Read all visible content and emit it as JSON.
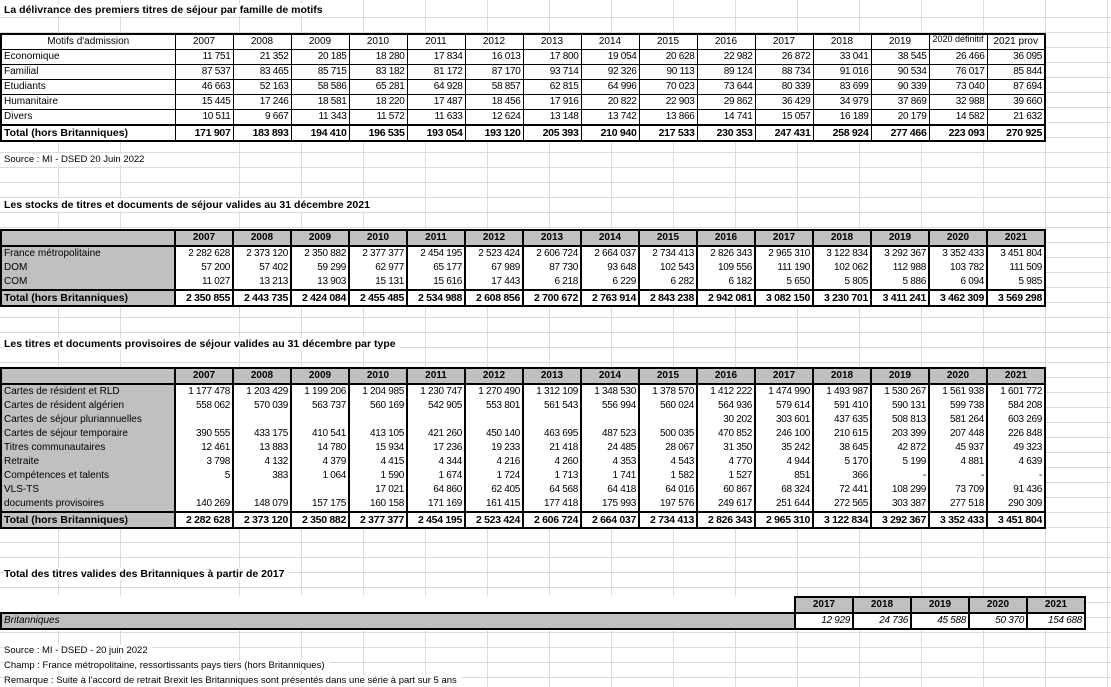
{
  "table1": {
    "title": "La délivrance des premiers titres de séjour par famille de motifs",
    "corner": "Motifs d'admission",
    "years": [
      "2007",
      "2008",
      "2009",
      "2010",
      "2011",
      "2012",
      "2013",
      "2014",
      "2015",
      "2016",
      "2017",
      "2018",
      "2019",
      "2020 définitif",
      "2021 prov"
    ],
    "rows": [
      {
        "label": "Economique",
        "values": [
          "11 751",
          "21 352",
          "20 185",
          "18 280",
          "17 834",
          "16 013",
          "17 800",
          "19 054",
          "20 628",
          "22 982",
          "26 872",
          "33 041",
          "38 545",
          "26 466",
          "36 095"
        ]
      },
      {
        "label": "Familial",
        "values": [
          "87 537",
          "83 465",
          "85 715",
          "83 182",
          "81 172",
          "87 170",
          "93 714",
          "92 326",
          "90 113",
          "89 124",
          "88 734",
          "91 016",
          "90 534",
          "76 017",
          "85 844"
        ]
      },
      {
        "label": "Etudiants",
        "values": [
          "46 663",
          "52 163",
          "58 586",
          "65 281",
          "64 928",
          "58 857",
          "62 815",
          "64 996",
          "70 023",
          "73 644",
          "80 339",
          "83 699",
          "90 339",
          "73 040",
          "87 694"
        ]
      },
      {
        "label": "Humanitaire",
        "values": [
          "15 445",
          "17 246",
          "18 581",
          "18 220",
          "17 487",
          "18 456",
          "17 916",
          "20 822",
          "22 903",
          "29 862",
          "36 429",
          "34 979",
          "37 869",
          "32 988",
          "39 660"
        ]
      },
      {
        "label": "Divers",
        "values": [
          "10 511",
          "9 667",
          "11 343",
          "11 572",
          "11 633",
          "12 624",
          "13 148",
          "13 742",
          "13 866",
          "14 741",
          "15 057",
          "16 189",
          "20 179",
          "14 582",
          "21 632"
        ]
      }
    ],
    "total": {
      "label": "Total (hors Britanniques)",
      "values": [
        "171 907",
        "183 893",
        "194 410",
        "196 535",
        "193 054",
        "193 120",
        "205 393",
        "210 940",
        "217 533",
        "230 353",
        "247 431",
        "258 924",
        "277 466",
        "223 093",
        "270 925"
      ]
    },
    "source": "Source : MI - DSED 20 Juin 2022"
  },
  "table2": {
    "title": "Les stocks de titres et documents de séjour valides au 31 décembre 2021",
    "corner": "",
    "years": [
      "2007",
      "2008",
      "2009",
      "2010",
      "2011",
      "2012",
      "2013",
      "2014",
      "2015",
      "2016",
      "2017",
      "2018",
      "2019",
      "2020",
      "2021"
    ],
    "rows": [
      {
        "label": "France métropolitaine",
        "values": [
          "2 282 628",
          "2 373 120",
          "2 350 882",
          "2 377 377",
          "2 454 195",
          "2 523 424",
          "2 606 724",
          "2 664 037",
          "2 734 413",
          "2 826 343",
          "2 965 310",
          "3 122 834",
          "3 292 367",
          "3 352 433",
          "3 451 804"
        ]
      },
      {
        "label": "DOM",
        "values": [
          "57 200",
          "57 402",
          "59 299",
          "62 977",
          "65 177",
          "67 989",
          "87 730",
          "93 648",
          "102 543",
          "109 556",
          "111 190",
          "102 062",
          "112 988",
          "103 782",
          "111 509"
        ]
      },
      {
        "label": "COM",
        "values": [
          "11 027",
          "13 213",
          "13 903",
          "15 131",
          "15 616",
          "17 443",
          "6 218",
          "6 229",
          "6 282",
          "6 182",
          "5 650",
          "5 805",
          "5 886",
          "6 094",
          "5 985"
        ]
      }
    ],
    "total": {
      "label": "Total (hors Britanniques)",
      "values": [
        "2 350 855",
        "2 443 735",
        "2 424 084",
        "2 455 485",
        "2 534 988",
        "2 608 856",
        "2 700 672",
        "2 763 914",
        "2 843 238",
        "2 942 081",
        "3 082 150",
        "3 230 701",
        "3 411 241",
        "3 462 309",
        "3 569 298"
      ]
    }
  },
  "table3": {
    "title": "Les titres et documents provisoires de séjour valides au 31 décembre par type",
    "corner": "",
    "years": [
      "2007",
      "2008",
      "2009",
      "2010",
      "2011",
      "2012",
      "2013",
      "2014",
      "2015",
      "2016",
      "2017",
      "2018",
      "2019",
      "2020",
      "2021"
    ],
    "rows": [
      {
        "label": "Cartes de résident et RLD",
        "values": [
          "1 177 478",
          "1 203 429",
          "1 199 206",
          "1 204 985",
          "1 230 747",
          "1 270 490",
          "1 312 109",
          "1 348 530",
          "1 378 570",
          "1 412 222",
          "1 474 990",
          "1 493 987",
          "1 530 267",
          "1 561 938",
          "1 601 772"
        ]
      },
      {
        "label": "Cartes de résident algérien",
        "values": [
          "558 062",
          "570 039",
          "563 737",
          "560 169",
          "542 905",
          "553 801",
          "561 543",
          "556 994",
          "560 024",
          "564 936",
          "579 614",
          "591 410",
          "590 131",
          "599 738",
          "584 208"
        ]
      },
      {
        "label": "Cartes de séjour pluriannuelles",
        "values": [
          "",
          "",
          "",
          "",
          "",
          "",
          "",
          "",
          "",
          "30 202",
          "303 601",
          "437 635",
          "508 813",
          "581 264",
          "603 269"
        ]
      },
      {
        "label": "Cartes de séjour temporaire",
        "values": [
          "390 555",
          "433 175",
          "410 541",
          "413 105",
          "421 260",
          "450 140",
          "463 695",
          "487 523",
          "500 035",
          "470 852",
          "246 100",
          "210 615",
          "203 399",
          "207 448",
          "226 848"
        ]
      },
      {
        "label": "Titres communautaires",
        "values": [
          "12 461",
          "13 883",
          "14 780",
          "15 934",
          "17 236",
          "19 233",
          "21 418",
          "24 485",
          "28 067",
          "31 350",
          "35 242",
          "38 645",
          "42 872",
          "45 937",
          "49 323"
        ]
      },
      {
        "label": "Retraite",
        "values": [
          "3 798",
          "4 132",
          "4 379",
          "4 415",
          "4 344",
          "4 216",
          "4 260",
          "4 353",
          "4 543",
          "4 770",
          "4 944",
          "5 170",
          "5 199",
          "4 881",
          "4 639"
        ]
      },
      {
        "label": "Compétences et talents",
        "values": [
          "5",
          "383",
          "1 064",
          "1 590",
          "1 674",
          "1 724",
          "1 713",
          "1 741",
          "1 582",
          "1 527",
          "851",
          "366",
          "-",
          "-",
          "-"
        ]
      },
      {
        "label": "VLS-TS",
        "values": [
          "",
          "",
          "",
          "17 021",
          "64 860",
          "62 405",
          "64 568",
          "64 418",
          "64 016",
          "60 867",
          "68 324",
          "72 441",
          "108 299",
          "73 709",
          "91 436"
        ]
      },
      {
        "label": "documents provisoires",
        "values": [
          "140 269",
          "148 079",
          "157 175",
          "160 158",
          "171 169",
          "161 415",
          "177 418",
          "175 993",
          "197 576",
          "249 617",
          "251 644",
          "272 565",
          "303 387",
          "277 518",
          "290 309"
        ]
      }
    ],
    "total": {
      "label": "Total (hors Britanniques)",
      "values": [
        "2 282 628",
        "2 373 120",
        "2 350 882",
        "2 377 377",
        "2 454 195",
        "2 523 424",
        "2 606 724",
        "2 664 037",
        "2 734 413",
        "2 826 343",
        "2 965 310",
        "3 122 834",
        "3 292 367",
        "3 352 433",
        "3 451 804"
      ]
    }
  },
  "table4": {
    "title": "Total des titres valides des Britanniques à partir de 2017",
    "years": [
      "2017",
      "2018",
      "2019",
      "2020",
      "2021"
    ],
    "row": {
      "label": "Britanniques",
      "values": [
        "12 929",
        "24 736",
        "45 588",
        "50 370",
        "154 688"
      ]
    }
  },
  "notes": {
    "source": "Source : MI - DSED - 20 juin 2022",
    "champ": "Champ : France métropolitaine, ressortissants pays tiers (hors Britanniques)",
    "remarque": "Remarque : Suite à l'accord de retrait Brexit les Britanniques sont présentés dans une série à part sur 5 ans"
  }
}
